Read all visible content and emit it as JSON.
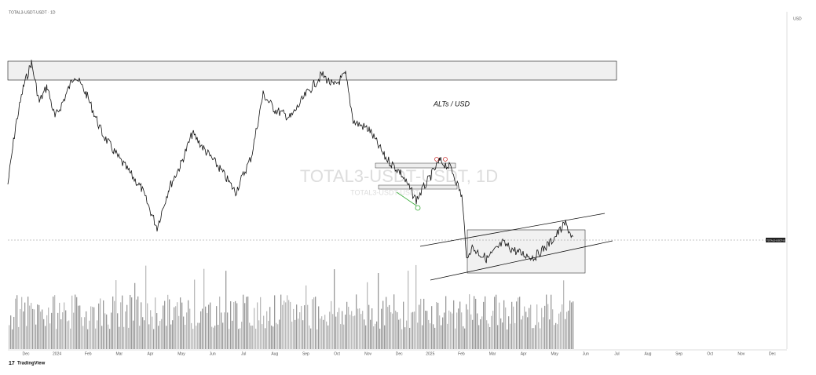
{
  "header": {
    "symbol": "TOTAL3-USDT-USDT · 1D"
  },
  "chart": {
    "annotation": "ALTs / USD",
    "watermark": "TOTAL3-USDT-USDT, 1D",
    "watermark_small": "TOTAL3-USDT-USDT",
    "price_axis_title": "USD",
    "price_tag": "TOTAL3-USDT-USDT"
  },
  "time_axis": [
    "Dec",
    "2024",
    "Feb",
    "Mar",
    "Apr",
    "May",
    "Jun",
    "Jul",
    "Aug",
    "Sep",
    "Oct",
    "Nov",
    "Dec",
    "2025",
    "Feb",
    "Mar",
    "Apr",
    "May",
    "Jun",
    "Jul",
    "Aug",
    "Sep",
    "Oct",
    "Nov",
    "Dec"
  ],
  "footer": {
    "brand": "TradingView"
  }
}
